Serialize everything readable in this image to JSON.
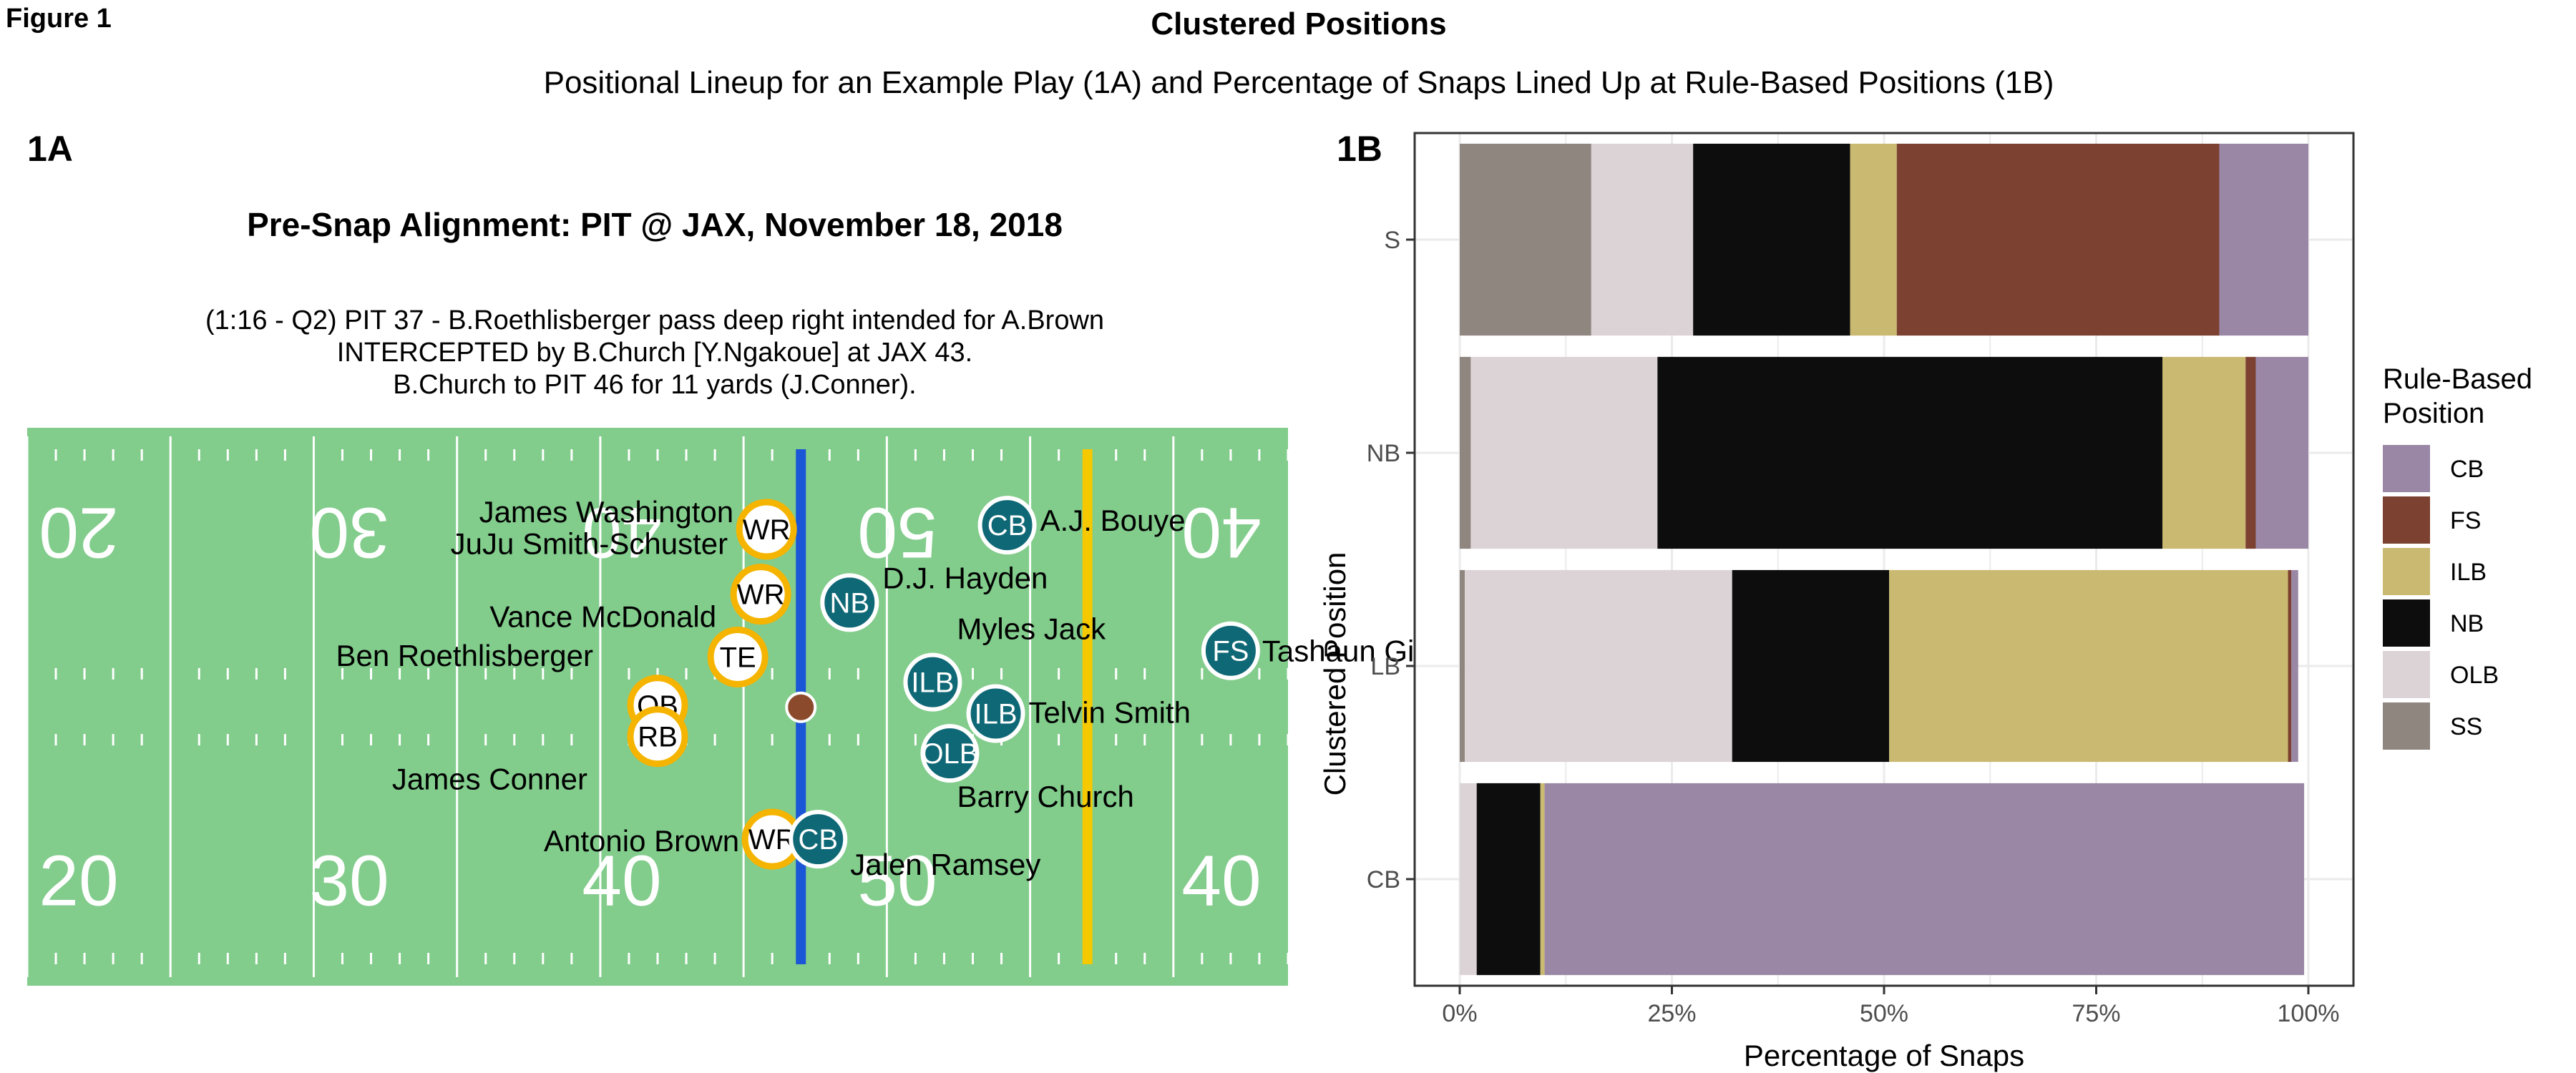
{
  "figure_label": "Figure 1",
  "title": "Clustered Positions",
  "subtitle": "Positional Lineup for an Example Play (1A) and Percentage of Snaps Lined Up at Rule-Based Positions (1B)",
  "panel_a": {
    "label": "1A",
    "title": "Pre-Snap Alignment: PIT @ JAX, November 18, 2018",
    "description": [
      "(1:16 - Q2) PIT 37 - B.Roethlisberger pass deep right intended for A.Brown",
      "INTERCEPTED by B.Church [Y.Ngakoue] at JAX 43.",
      "B.Church to PIT 46 for 11 yards (J.Conner)."
    ],
    "colors": {
      "field": "#82cc8c",
      "line_of_scrimmage": "#1a56d6",
      "first_down": "#f5c800",
      "offense_ring": "#f5b400",
      "offense_fill": "#ffffff",
      "defense_fill": "#0f6876",
      "football": "#8b4a2c"
    },
    "yard_numbers_top": [
      "20",
      "30",
      "40",
      "50",
      "40"
    ],
    "yard_numbers_bottom": [
      "20",
      "30",
      "40",
      "50",
      "40"
    ],
    "chart_data": {
      "type": "scatter",
      "x_axis": "field position (yards from PIT goal line)",
      "y_axis": "lateral field position (yards from near sideline)",
      "xlim": [
        10,
        54
      ],
      "ylim": [
        0,
        53.3
      ],
      "line_of_scrimmage": 37,
      "first_down_line": 47,
      "football": {
        "x": 37,
        "y": 26.6
      },
      "offense": [
        {
          "pos": "WR",
          "name": "James Washington",
          "x": 35.8,
          "y": 43.6
        },
        {
          "pos": "WR",
          "name": "JuJu Smith-Schuster",
          "x": 35.6,
          "y": 37.4
        },
        {
          "pos": "TE",
          "name": "Vance McDonald",
          "x": 34.8,
          "y": 31.4
        },
        {
          "pos": "QB",
          "name": "Ben Roethlisberger",
          "x": 32.0,
          "y": 26.8
        },
        {
          "pos": "RB",
          "name": "James Conner",
          "x": 32.0,
          "y": 23.8
        },
        {
          "pos": "WR",
          "name": "Antonio Brown",
          "x": 36.0,
          "y": 14.0
        }
      ],
      "defense": [
        {
          "pos": "CB",
          "name": "A.J. Bouye",
          "x": 44.2,
          "y": 44.0
        },
        {
          "pos": "NB",
          "name": "D.J. Hayden",
          "x": 38.7,
          "y": 36.6
        },
        {
          "pos": "FS",
          "name": "Tashaun Gipson",
          "x": 52.0,
          "y": 32.0
        },
        {
          "pos": "ILB",
          "name": "Myles Jack",
          "x": 41.6,
          "y": 29.0
        },
        {
          "pos": "ILB",
          "name": "Telvin Smith",
          "x": 43.8,
          "y": 26.0
        },
        {
          "pos": "OLB",
          "name": "Barry Church",
          "x": 42.2,
          "y": 22.2
        },
        {
          "pos": "CB",
          "name": "Jalen Ramsey",
          "x": 37.6,
          "y": 14.0
        }
      ]
    }
  },
  "panel_b": {
    "label": "1B",
    "ylabel": "Clustered Position",
    "xlabel": "Percentage of Snaps",
    "legend_title": [
      "Rule-Based",
      "Position"
    ],
    "chart_data": {
      "type": "bar",
      "orientation": "horizontal",
      "stacked": true,
      "categories": [
        "S",
        "NB",
        "LB",
        "CB"
      ],
      "xlim": [
        0,
        1
      ],
      "x_ticks": [
        0,
        0.25,
        0.5,
        0.75,
        1.0
      ],
      "x_tick_labels": [
        "0%",
        "25%",
        "50%",
        "75%",
        "100%"
      ],
      "grid": true,
      "legend_position": "right",
      "stack_order": [
        "SS",
        "OLB",
        "NB",
        "ILB",
        "FS",
        "CB"
      ],
      "series": [
        {
          "name": "CB",
          "color": "#9a87a6",
          "values": [
            0.105,
            0.062,
            0.008,
            0.895
          ]
        },
        {
          "name": "FS",
          "color": "#7c4130",
          "values": [
            0.38,
            0.012,
            0.004,
            0.0
          ]
        },
        {
          "name": "ILB",
          "color": "#c9b971",
          "values": [
            0.055,
            0.098,
            0.47,
            0.005
          ]
        },
        {
          "name": "NB",
          "color": "#0e0d0d",
          "values": [
            0.185,
            0.595,
            0.185,
            0.075
          ]
        },
        {
          "name": "OLB",
          "color": "#dcd3d6",
          "values": [
            0.12,
            0.22,
            0.315,
            0.02
          ]
        },
        {
          "name": "SS",
          "color": "#8f8680",
          "values": [
            0.155,
            0.013,
            0.006,
            0.0
          ]
        }
      ]
    }
  }
}
